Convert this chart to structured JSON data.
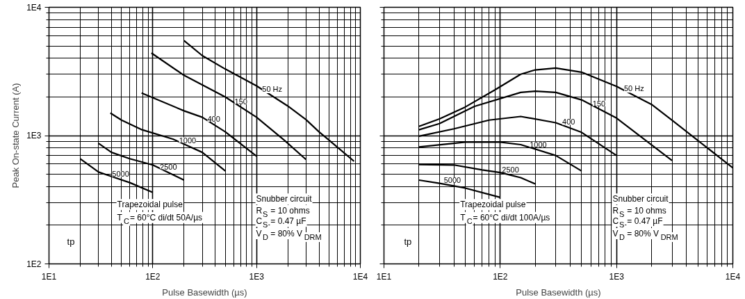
{
  "chart_data": [
    {
      "type": "line",
      "xlabel": "Pulse Basewidth (µs)",
      "ylabel": "Peak On-state Current (A)",
      "log": "xy",
      "grid": true,
      "xlim": [
        10,
        10000
      ],
      "ylim": [
        100,
        10000
      ],
      "xticks": [
        {
          "value": 10,
          "label": "1E1"
        },
        {
          "value": 100,
          "label": "1E2"
        },
        {
          "value": 1000,
          "label": "1E3"
        },
        {
          "value": 10000,
          "label": "1E4"
        }
      ],
      "yticks": [
        {
          "value": 100,
          "label": "1E2"
        },
        {
          "value": 1000,
          "label": "1E3"
        },
        {
          "value": 10000,
          "label": "1E4"
        }
      ],
      "series": [
        {
          "name": "50 Hz",
          "color": "#000000",
          "x": [
            200,
            300,
            500,
            1000,
            2000,
            3000,
            4000,
            5000,
            8700
          ],
          "values": [
            5500,
            4200,
            3300,
            2440,
            1700,
            1330,
            1070,
            920,
            630
          ]
        },
        {
          "name": "150",
          "color": "#000000",
          "x": [
            97,
            200,
            500,
            1000,
            1850,
            3000
          ],
          "values": [
            4400,
            2950,
            2000,
            1390,
            920,
            650
          ]
        },
        {
          "name": "400",
          "color": "#000000",
          "x": [
            78,
            200,
            300,
            500,
            1000
          ],
          "values": [
            2150,
            1560,
            1390,
            1070,
            690
          ]
        },
        {
          "name": "1000",
          "color": "#000000",
          "x": [
            39,
            50,
            79,
            156,
            300,
            500
          ],
          "values": [
            1500,
            1320,
            1110,
            940,
            740,
            530
          ]
        },
        {
          "name": "2500",
          "color": "#000000",
          "x": [
            30,
            40,
            60,
            100,
            200
          ],
          "values": [
            870,
            740,
            660,
            590,
            450
          ]
        },
        {
          "name": "5000",
          "color": "#000000",
          "x": [
            20,
            30,
            40,
            60,
            100
          ],
          "values": [
            660,
            520,
            480,
            430,
            360
          ]
        }
      ],
      "annotations": [
        "tp",
        "Trapezoidal pulse",
        "T$_{C}$= 60°C di/dt 50A/µs",
        "Snubber circuit",
        "R$_{S}$ = 10 ohms",
        "C$_{S}$ = 0.47 µF",
        "V$_{D}$ = 80% V$_{DRM}$"
      ]
    },
    {
      "type": "line",
      "xlabel": "Pulse Basewidth (µs)",
      "log": "xy",
      "grid": true,
      "tick_labels": "x",
      "xlim": [
        10,
        10000
      ],
      "ylim": [
        100,
        10000
      ],
      "xticks": [
        {
          "value": 10,
          "label": "1E1"
        },
        {
          "value": 100,
          "label": "1E2"
        },
        {
          "value": 1000,
          "label": "1E3"
        },
        {
          "value": 10000,
          "label": "1E4"
        }
      ],
      "yticks": [
        {
          "value": 100,
          "label": null
        },
        {
          "value": 1000,
          "label": null
        },
        {
          "value": 10000,
          "label": null
        }
      ],
      "series": [
        {
          "name": "50 Hz",
          "color": "#000000",
          "x": [
            20,
            30,
            50,
            90,
            150,
            200,
            300,
            500,
            1000,
            2000,
            3000,
            10000
          ],
          "values": [
            1180,
            1350,
            1670,
            2270,
            3010,
            3250,
            3360,
            3120,
            2420,
            1750,
            1320,
            560
          ]
        },
        {
          "name": "150",
          "color": "#000000",
          "x": [
            20,
            30,
            60,
            150,
            200,
            300,
            500,
            1000,
            3000
          ],
          "values": [
            1110,
            1240,
            1690,
            2170,
            2220,
            2170,
            1900,
            1370,
            640
          ]
        },
        {
          "name": "400",
          "color": "#000000",
          "x": [
            20,
            40,
            80,
            150,
            300,
            500,
            1000
          ],
          "values": [
            990,
            1130,
            1320,
            1410,
            1260,
            1060,
            700
          ]
        },
        {
          "name": "1000",
          "color": "#000000",
          "x": [
            20,
            50,
            100,
            150,
            300,
            500
          ],
          "values": [
            815,
            890,
            890,
            850,
            700,
            530
          ]
        },
        {
          "name": "2500",
          "color": "#000000",
          "x": [
            20,
            40,
            70,
            100,
            150,
            200
          ],
          "values": [
            595,
            590,
            540,
            515,
            470,
            420
          ]
        },
        {
          "name": "5000",
          "color": "#000000",
          "x": [
            20,
            30,
            50,
            100
          ],
          "values": [
            450,
            425,
            390,
            330
          ]
        }
      ],
      "annotations": [
        "tp",
        "Trapezoidal pulse",
        "T$_{C}$= 60°C di/dt 100A/µs",
        "Snubber circuit",
        "R$_{S}$ = 10 ohms",
        "C$_{S}$ = 0.47 µF",
        "V$_{D}$ = 80% V$_{DRM}$"
      ]
    }
  ]
}
